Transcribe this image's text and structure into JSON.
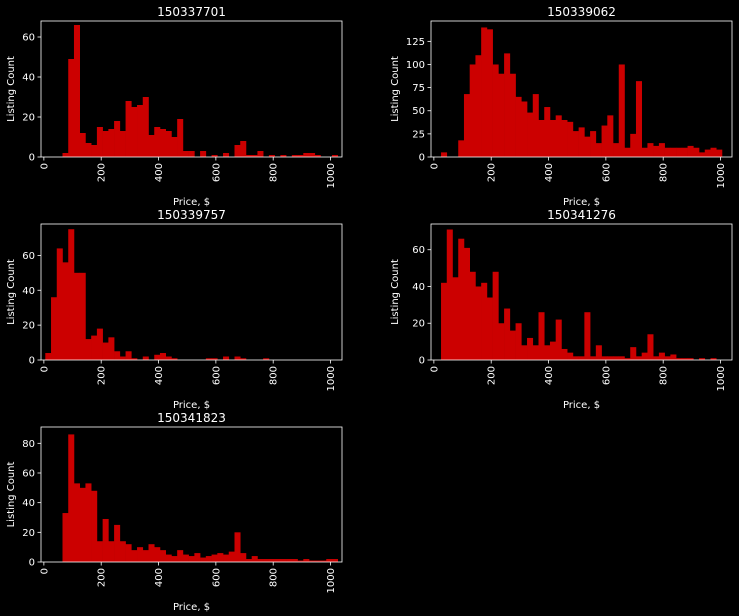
{
  "figure": {
    "background": "#000000",
    "bar_color": "#cc0000",
    "axis_color": "#ffffff"
  },
  "chart_data": [
    {
      "type": "bar",
      "title": "150337701",
      "xlabel": "Price, $",
      "ylabel": "Listing Count",
      "xlim": [
        -10,
        1040
      ],
      "ylim": [
        0,
        68
      ],
      "xticks": [
        0,
        200,
        400,
        600,
        800,
        1000
      ],
      "yticks": [
        0,
        20,
        40,
        60
      ],
      "bin_edges_start": 5,
      "bin_width": 20,
      "values": [
        0,
        0,
        0,
        2,
        49,
        66,
        12,
        7,
        6,
        15,
        13,
        14,
        18,
        13,
        28,
        25,
        26,
        30,
        11,
        15,
        14,
        13,
        10,
        19,
        3,
        3,
        0,
        3,
        0,
        1,
        0,
        2,
        0,
        6,
        8,
        1,
        1,
        3,
        0,
        1,
        0,
        1,
        0,
        1,
        1,
        2,
        2,
        1,
        0,
        0,
        1,
        0
      ]
    },
    {
      "type": "bar",
      "title": "150339062",
      "xlabel": "Price, $",
      "ylabel": "Listing Count",
      "xlim": [
        -10,
        1040
      ],
      "ylim": [
        0,
        147
      ],
      "xticks": [
        0,
        200,
        400,
        600,
        800,
        1000
      ],
      "yticks": [
        0,
        25,
        50,
        75,
        100,
        125
      ],
      "bin_edges_start": 5,
      "bin_width": 20,
      "values": [
        0,
        5,
        0,
        0,
        18,
        68,
        100,
        110,
        140,
        138,
        100,
        90,
        112,
        90,
        65,
        60,
        48,
        68,
        40,
        54,
        40,
        45,
        40,
        38,
        28,
        32,
        22,
        28,
        15,
        34,
        45,
        15,
        100,
        10,
        25,
        82,
        10,
        15,
        12,
        15,
        10,
        10,
        10,
        10,
        12,
        10,
        5,
        8,
        10,
        8
      ]
    },
    {
      "type": "bar",
      "title": "150339757",
      "xlabel": "Price, $",
      "ylabel": "Listing Count",
      "xlim": [
        -10,
        1040
      ],
      "ylim": [
        0,
        78
      ],
      "xticks": [
        0,
        200,
        400,
        600,
        800,
        1000
      ],
      "yticks": [
        0,
        20,
        40,
        60
      ],
      "bin_edges_start": 5,
      "bin_width": 20,
      "values": [
        4,
        36,
        64,
        56,
        75,
        50,
        50,
        12,
        14,
        18,
        10,
        13,
        5,
        2,
        5,
        1,
        0,
        2,
        0,
        3,
        4,
        2,
        1,
        0,
        0,
        0,
        0,
        0,
        1,
        1,
        0,
        2,
        0,
        2,
        1,
        0,
        0,
        0,
        1,
        0,
        0,
        0,
        0,
        0,
        0,
        0,
        0,
        0,
        0,
        0
      ]
    },
    {
      "type": "bar",
      "title": "150341276",
      "xlabel": "Price, $",
      "ylabel": "Listing Count",
      "xlim": [
        -10,
        1040
      ],
      "ylim": [
        0,
        74
      ],
      "xticks": [
        0,
        200,
        400,
        600,
        800,
        1000
      ],
      "yticks": [
        0,
        20,
        40,
        60
      ],
      "bin_edges_start": 25,
      "bin_width": 20,
      "values": [
        42,
        71,
        45,
        66,
        61,
        48,
        40,
        42,
        34,
        48,
        20,
        28,
        16,
        20,
        8,
        12,
        8,
        26,
        8,
        10,
        22,
        6,
        4,
        2,
        2,
        26,
        2,
        8,
        2,
        2,
        2,
        2,
        1,
        7,
        2,
        4,
        14,
        2,
        4,
        2,
        3,
        1,
        1,
        1,
        0,
        1,
        0,
        1
      ]
    },
    {
      "type": "bar",
      "title": "150341823",
      "xlabel": "Price, $",
      "ylabel": "Listing Count",
      "xlim": [
        -10,
        1040
      ],
      "ylim": [
        0,
        91
      ],
      "xticks": [
        0,
        200,
        400,
        600,
        800,
        1000
      ],
      "yticks": [
        0,
        20,
        40,
        60,
        80
      ],
      "bin_edges_start": 65,
      "bin_width": 20,
      "values": [
        33,
        86,
        53,
        50,
        53,
        48,
        14,
        29,
        14,
        25,
        14,
        12,
        8,
        10,
        8,
        12,
        10,
        8,
        5,
        4,
        8,
        5,
        4,
        6,
        3,
        4,
        5,
        6,
        5,
        7,
        20,
        6,
        2,
        4,
        2,
        2,
        2,
        2,
        2,
        2,
        2,
        1,
        2,
        1,
        1,
        1,
        2,
        2
      ]
    }
  ]
}
